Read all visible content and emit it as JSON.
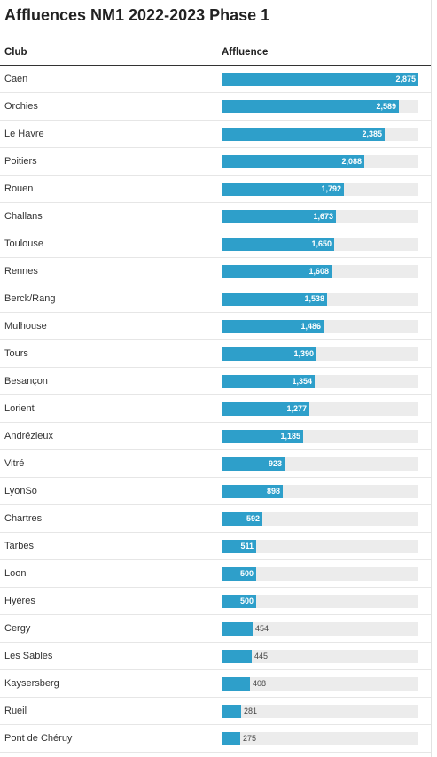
{
  "title": "Affluences NM1 2022-2023 Phase 1",
  "columns": {
    "club": "Club",
    "value": "Affluence"
  },
  "colors": {
    "bar": "#2e9fca",
    "track": "#ececec"
  },
  "chart_data": {
    "type": "bar",
    "orientation": "horizontal",
    "title": "Affluences NM1 2022-2023 Phase 1",
    "xlim": [
      0,
      2875
    ],
    "categories": [
      "Caen",
      "Orchies",
      "Le Havre",
      "Poitiers",
      "Rouen",
      "Challans",
      "Toulouse",
      "Rennes",
      "Berck/Rang",
      "Mulhouse",
      "Tours",
      "Besançon",
      "Lorient",
      "Andrézieux",
      "Vitré",
      "LyonSo",
      "Chartres",
      "Tarbes",
      "Loon",
      "Hyères",
      "Cergy",
      "Les Sables",
      "Kaysersberg",
      "Rueil",
      "Pont de Chéruy"
    ],
    "values": [
      2875,
      2589,
      2385,
      2088,
      1792,
      1673,
      1650,
      1608,
      1538,
      1486,
      1390,
      1354,
      1277,
      1185,
      923,
      898,
      592,
      511,
      500,
      500,
      454,
      445,
      408,
      281,
      275
    ],
    "value_labels": [
      "2,875",
      "2,589",
      "2,385",
      "2,088",
      "1,792",
      "1,673",
      "1,650",
      "1,608",
      "1,538",
      "1,486",
      "1,390",
      "1,354",
      "1,277",
      "1,185",
      "923",
      "898",
      "592",
      "511",
      "500",
      "500",
      "454",
      "445",
      "408",
      "281",
      "275"
    ]
  }
}
